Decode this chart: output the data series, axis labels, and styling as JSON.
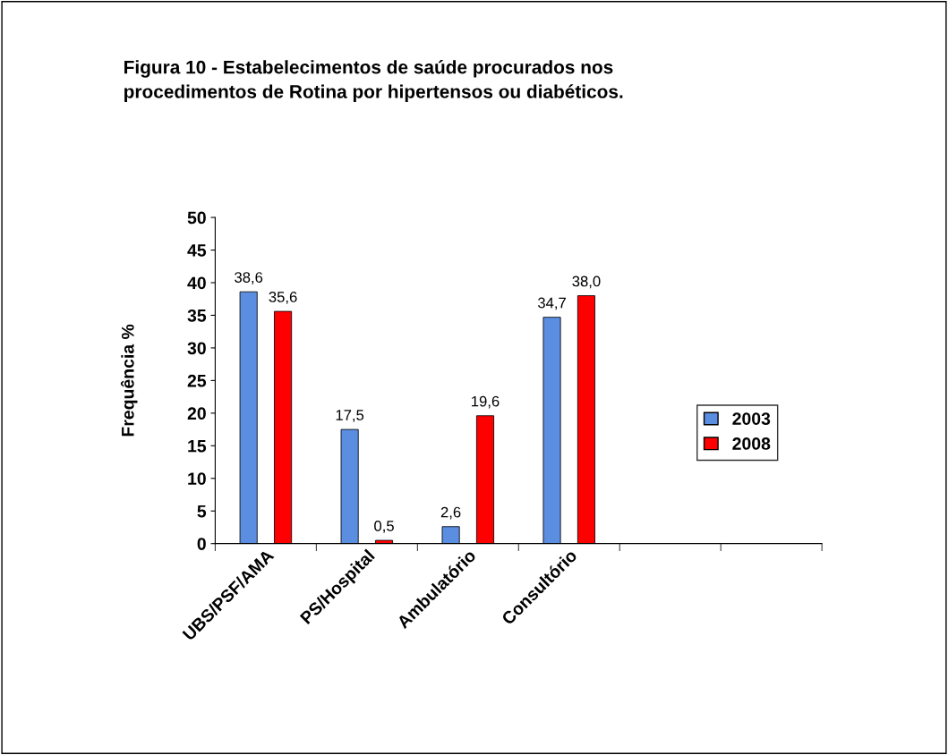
{
  "chart_data": {
    "type": "bar",
    "title": "Figura 10 - Estabelecimentos de saúde procurados nos\nprocedimentos de Rotina por hipertensos ou diabéticos.",
    "ylabel": "Frequência %",
    "categories": [
      "UBS/PSF/AMA",
      "PS/Hospital",
      "Ambulatório",
      "Consultório",
      null,
      null
    ],
    "series": [
      {
        "name": "2003",
        "color": "#5b8ee0",
        "values": [
          38.6,
          17.5,
          2.6,
          34.7,
          null,
          null
        ],
        "value_labels": [
          "38,6",
          "17,5",
          "2,6",
          "34,7",
          null,
          null
        ]
      },
      {
        "name": "2008",
        "color": "#ff0000",
        "values": [
          35.6,
          0.5,
          19.6,
          38.0,
          null,
          null
        ],
        "value_labels": [
          "35,6",
          "0,5",
          "19,6",
          "38,0",
          null,
          null
        ]
      }
    ],
    "ylim": [
      0,
      50
    ],
    "yticks": [
      0,
      5,
      10,
      15,
      20,
      25,
      30,
      35,
      40,
      45,
      50
    ],
    "grid": false,
    "legend": "right"
  }
}
